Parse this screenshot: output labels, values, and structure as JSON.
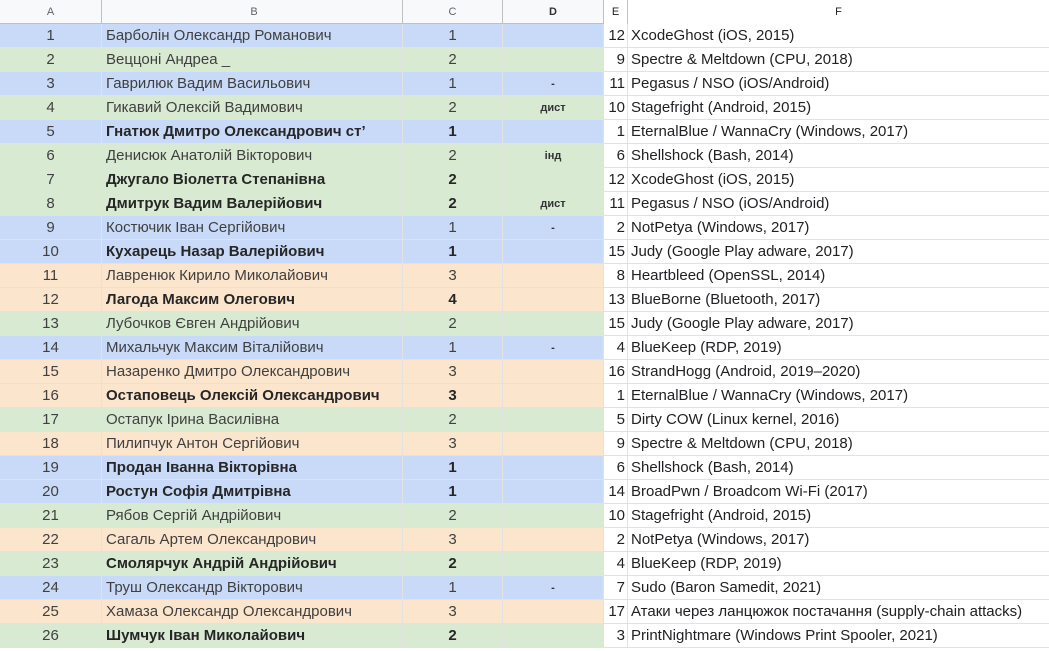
{
  "columns": [
    "A",
    "B",
    "C",
    "D",
    "E",
    "F"
  ],
  "colors": {
    "blue": "#c9daf8",
    "green": "#d9ead3",
    "orange": "#fce5cd"
  },
  "rows": [
    {
      "a": "1",
      "b": "Барболін Олександр Романович",
      "c": "1",
      "d": "",
      "e": "12",
      "f": "XcodeGhost (iOS, 2015)",
      "color": "blue",
      "bold": false
    },
    {
      "a": "2",
      "b": "Веццоні Андреа _",
      "c": "2",
      "d": "",
      "e": "9",
      "f": "Spectre & Meltdown (CPU, 2018)",
      "color": "green",
      "bold": false
    },
    {
      "a": "3",
      "b": "Гаврилюк Вадим Васильович",
      "c": "1",
      "d": "-",
      "e": "11",
      "f": "Pegasus / NSO (iOS/Android)",
      "color": "blue",
      "bold": false
    },
    {
      "a": "4",
      "b": "Гикавий Олексій Вадимович",
      "c": "2",
      "d": "дист",
      "e": "10",
      "f": "Stagefright (Android, 2015)",
      "color": "green",
      "bold": false
    },
    {
      "a": "5",
      "b": "Гнатюк Дмитро Олександрович ст’",
      "c": "1",
      "d": "",
      "e": "1",
      "f": "EternalBlue / WannaCry (Windows, 2017)",
      "color": "blue",
      "bold": true
    },
    {
      "a": "6",
      "b": "Денисюк Анатолій Вікторович",
      "c": "2",
      "d": "інд",
      "e": "6",
      "f": "Shellshock (Bash, 2014)",
      "color": "green",
      "bold": false
    },
    {
      "a": "7",
      "b": "Джугало Віолетта Степанівна",
      "c": "2",
      "d": "",
      "e": "12",
      "f": "XcodeGhost (iOS, 2015)",
      "color": "green",
      "bold": true
    },
    {
      "a": "8",
      "b": "Дмитрук Вадим Валерійович",
      "c": "2",
      "d": "дист",
      "e": "11",
      "f": "Pegasus / NSO (iOS/Android)",
      "color": "green",
      "bold": true
    },
    {
      "a": "9",
      "b": "Костючик Іван Сергійович",
      "c": "1",
      "d": "-",
      "e": "2",
      "f": "NotPetya (Windows, 2017)",
      "color": "blue",
      "bold": false
    },
    {
      "a": "10",
      "b": "Кухарець Назар Валерійович",
      "c": "1",
      "d": "",
      "e": "15",
      "f": "Judy (Google Play adware, 2017)",
      "color": "blue",
      "bold": true
    },
    {
      "a": "11",
      "b": "Лавренюк Кирило Миколайович",
      "c": "3",
      "d": "",
      "e": "8",
      "f": "Heartbleed (OpenSSL, 2014)",
      "color": "orange",
      "bold": false
    },
    {
      "a": "12",
      "b": "Лагода Максим Олегович",
      "c": "4",
      "d": "",
      "e": "13",
      "f": "BlueBorne (Bluetooth, 2017)",
      "color": "orange",
      "bold": true
    },
    {
      "a": "13",
      "b": "Лубочков Євген Андрійович",
      "c": "2",
      "d": "",
      "e": "15",
      "f": "Judy (Google Play adware, 2017)",
      "color": "green",
      "bold": false
    },
    {
      "a": "14",
      "b": "Михальчук Максим Віталійович",
      "c": "1",
      "d": "-",
      "e": "4",
      "f": "BlueKeep (RDP, 2019)",
      "color": "blue",
      "bold": false
    },
    {
      "a": "15",
      "b": "Назаренко Дмитро Олександрович",
      "c": "3",
      "d": "",
      "e": "16",
      "f": "StrandHogg (Android, 2019–2020)",
      "color": "orange",
      "bold": false
    },
    {
      "a": "16",
      "b": "Остаповець Олексій Олександрович",
      "c": "3",
      "d": "",
      "e": "1",
      "f": "EternalBlue / WannaCry (Windows, 2017)",
      "color": "orange",
      "bold": true
    },
    {
      "a": "17",
      "b": "Остапук Ірина Василівна",
      "c": "2",
      "d": "",
      "e": "5",
      "f": "Dirty COW (Linux kernel, 2016)",
      "color": "green",
      "bold": false
    },
    {
      "a": "18",
      "b": "Пилипчук Антон Сергійович",
      "c": "3",
      "d": "",
      "e": "9",
      "f": "Spectre & Meltdown (CPU, 2018)",
      "color": "orange",
      "bold": false
    },
    {
      "a": "19",
      "b": "Продан Іванна Вікторівна",
      "c": "1",
      "d": "",
      "e": "6",
      "f": "Shellshock (Bash, 2014)",
      "color": "blue",
      "bold": true
    },
    {
      "a": "20",
      "b": "Ростун Софія Дмитрівна",
      "c": "1",
      "d": "",
      "e": "14",
      "f": "BroadPwn / Broadcom Wi-Fi (2017)",
      "color": "blue",
      "bold": true
    },
    {
      "a": "21",
      "b": "Рябов Сергій Андрійович",
      "c": "2",
      "d": "",
      "e": "10",
      "f": "Stagefright (Android, 2015)",
      "color": "green",
      "bold": false
    },
    {
      "a": "22",
      "b": "Сагаль Артем Олександрович",
      "c": "3",
      "d": "",
      "e": "2",
      "f": "NotPetya (Windows, 2017)",
      "color": "orange",
      "bold": false
    },
    {
      "a": "23",
      "b": "Смолярчук Андрій Андрійович",
      "c": "2",
      "d": "",
      "e": "4",
      "f": "BlueKeep (RDP, 2019)",
      "color": "green",
      "bold": true
    },
    {
      "a": "24",
      "b": "Труш Олександр Вікторович",
      "c": "1",
      "d": "-",
      "e": "7",
      "f": "Sudo (Baron Samedit, 2021)",
      "color": "blue",
      "bold": false
    },
    {
      "a": "25",
      "b": "Хамаза Олександр Олександрович",
      "c": "3",
      "d": "",
      "e": "17",
      "f": "Атаки через ланцюжок постачання (supply-chain attacks)",
      "color": "orange",
      "bold": false
    },
    {
      "a": "26",
      "b": "Шумчук Іван Миколайович",
      "c": "2",
      "d": "",
      "e": "3",
      "f": "PrintNightmare (Windows Print Spooler, 2021)",
      "color": "green",
      "bold": true
    }
  ]
}
